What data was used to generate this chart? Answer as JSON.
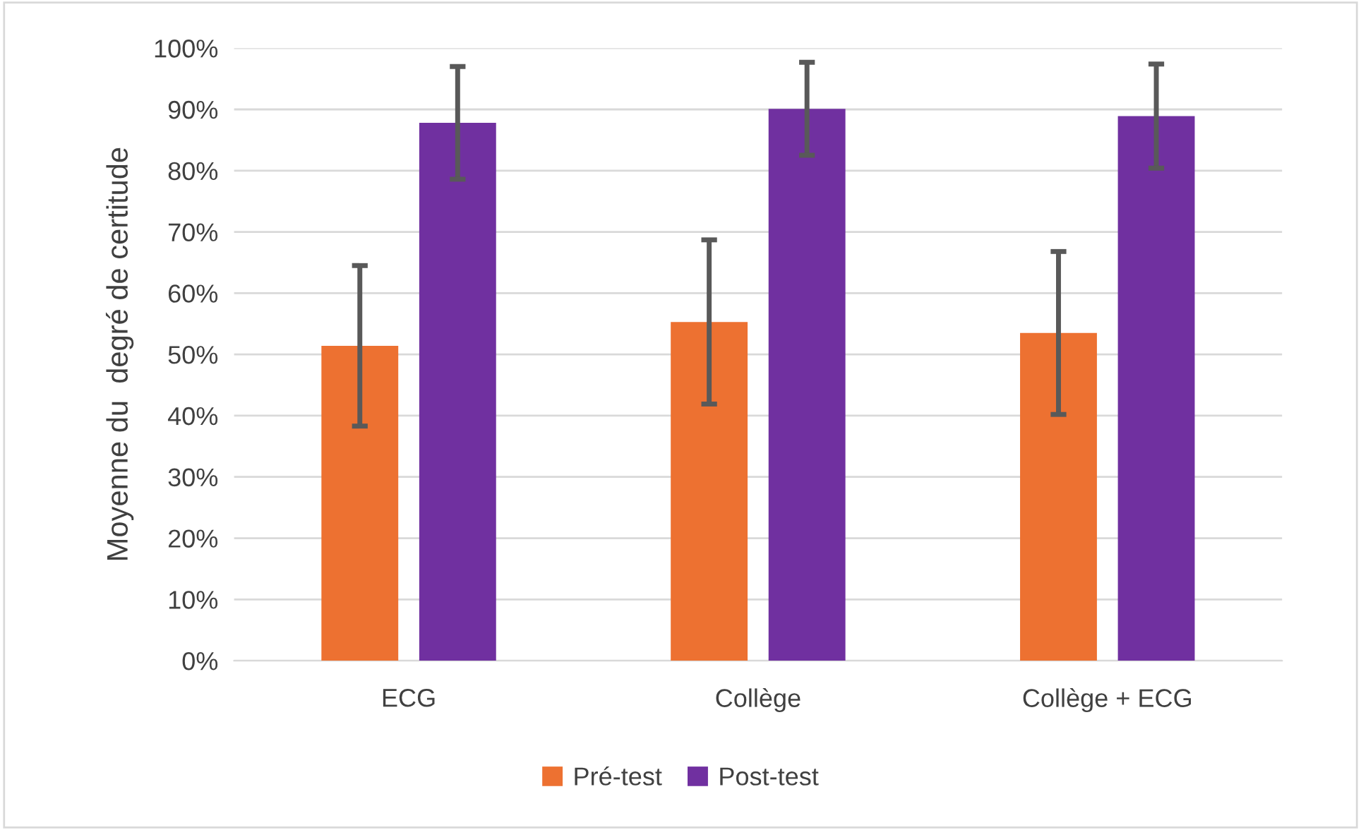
{
  "chart_data": {
    "type": "bar",
    "ylabel": "Moyenne du  degré de certitude",
    "categories": [
      "ECG",
      "Collège",
      "Collège + ECG"
    ],
    "series": [
      {
        "name": "Pré-test",
        "color": "#ed7131",
        "values": [
          51.4,
          55.3,
          53.5
        ],
        "errors": [
          13.1,
          13.4,
          13.3
        ]
      },
      {
        "name": "Post-test",
        "color": "#7030a0",
        "values": [
          87.8,
          90.1,
          88.9
        ],
        "errors": [
          9.2,
          7.6,
          8.5
        ]
      }
    ],
    "ylim": [
      0,
      100
    ],
    "yticks": [
      {
        "value": 0,
        "label": "0%"
      },
      {
        "value": 10,
        "label": "10%"
      },
      {
        "value": 20,
        "label": "20%"
      },
      {
        "value": 30,
        "label": "30%"
      },
      {
        "value": 40,
        "label": "40%"
      },
      {
        "value": 50,
        "label": "50%"
      },
      {
        "value": 60,
        "label": "60%"
      },
      {
        "value": 70,
        "label": "70%"
      },
      {
        "value": 80,
        "label": "80%"
      },
      {
        "value": 90,
        "label": "90%"
      },
      {
        "value": 100,
        "label": "100%"
      }
    ],
    "grid": "y",
    "legend": "bottom"
  }
}
